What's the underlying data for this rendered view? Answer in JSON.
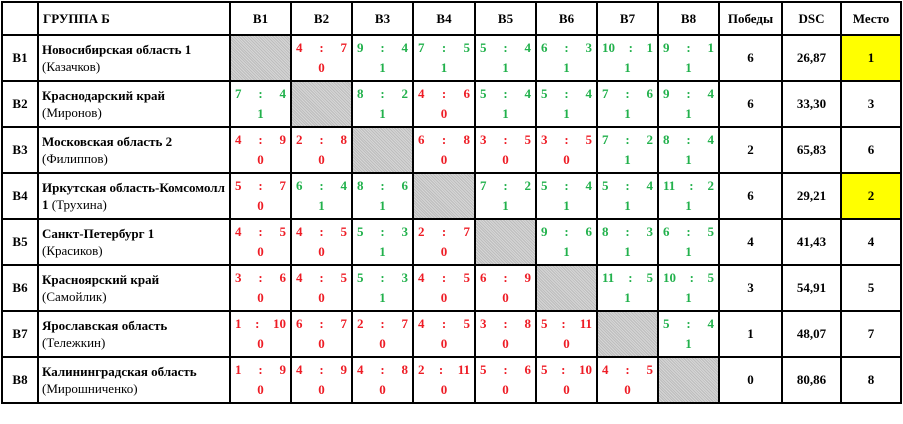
{
  "header": {
    "group": "ГРУППА Б",
    "cols": [
      "В1",
      "В2",
      "В3",
      "В4",
      "В5",
      "В6",
      "В7",
      "В8"
    ],
    "wins": "Победы",
    "dsc": "DSC",
    "place": "Место"
  },
  "colors": {
    "win": "#22b14c",
    "loss": "#ee1c25",
    "highlight": "#ffff00"
  },
  "rows": [
    {
      "id": "В1",
      "team": "Новосибирская область 1",
      "captain": "(Казачков)",
      "cells": [
        null,
        [
          "4",
          "7",
          "0"
        ],
        [
          "9",
          "4",
          "1"
        ],
        [
          "7",
          "5",
          "1"
        ],
        [
          "5",
          "4",
          "1"
        ],
        [
          "6",
          "3",
          "1"
        ],
        [
          "10",
          "1",
          "1"
        ],
        [
          "9",
          "1",
          "1"
        ]
      ],
      "wins": "6",
      "dsc": "26,87",
      "place": "1",
      "highlight": true
    },
    {
      "id": "В2",
      "team": "Краснодарский край",
      "captain": "(Миронов)",
      "cells": [
        [
          "7",
          "4",
          "1"
        ],
        null,
        [
          "8",
          "2",
          "1"
        ],
        [
          "4",
          "6",
          "0"
        ],
        [
          "5",
          "4",
          "1"
        ],
        [
          "5",
          "4",
          "1"
        ],
        [
          "7",
          "6",
          "1"
        ],
        [
          "9",
          "4",
          "1"
        ]
      ],
      "wins": "6",
      "dsc": "33,30",
      "place": "3",
      "highlight": false
    },
    {
      "id": "В3",
      "team": "Московская область 2",
      "captain": "(Филиппов)",
      "cells": [
        [
          "4",
          "9",
          "0"
        ],
        [
          "2",
          "8",
          "0"
        ],
        null,
        [
          "6",
          "8",
          "0"
        ],
        [
          "3",
          "5",
          "0"
        ],
        [
          "3",
          "5",
          "0"
        ],
        [
          "7",
          "2",
          "1"
        ],
        [
          "8",
          "4",
          "1"
        ]
      ],
      "wins": "2",
      "dsc": "65,83",
      "place": "6",
      "highlight": false
    },
    {
      "id": "В4",
      "team": "Иркутская область-Комсомолл 1",
      "captain": "(Трухина)",
      "cells": [
        [
          "5",
          "7",
          "0"
        ],
        [
          "6",
          "4",
          "1"
        ],
        [
          "8",
          "6",
          "1"
        ],
        null,
        [
          "7",
          "2",
          "1"
        ],
        [
          "5",
          "4",
          "1"
        ],
        [
          "5",
          "4",
          "1"
        ],
        [
          "11",
          "2",
          "1"
        ]
      ],
      "wins": "6",
      "dsc": "29,21",
      "place": "2",
      "highlight": true
    },
    {
      "id": "В5",
      "team": "Санкт-Петербург 1",
      "captain": "(Красиков)",
      "cells": [
        [
          "4",
          "5",
          "0"
        ],
        [
          "4",
          "5",
          "0"
        ],
        [
          "5",
          "3",
          "1"
        ],
        [
          "2",
          "7",
          "0"
        ],
        null,
        [
          "9",
          "6",
          "1"
        ],
        [
          "8",
          "3",
          "1"
        ],
        [
          "6",
          "5",
          "1"
        ]
      ],
      "wins": "4",
      "dsc": "41,43",
      "place": "4",
      "highlight": false
    },
    {
      "id": "В6",
      "team": "Красноярский край",
      "captain": "(Самойлик)",
      "cells": [
        [
          "3",
          "6",
          "0"
        ],
        [
          "4",
          "5",
          "0"
        ],
        [
          "5",
          "3",
          "1"
        ],
        [
          "4",
          "5",
          "0"
        ],
        [
          "6",
          "9",
          "0"
        ],
        null,
        [
          "11",
          "5",
          "1"
        ],
        [
          "10",
          "5",
          "1"
        ]
      ],
      "wins": "3",
      "dsc": "54,91",
      "place": "5",
      "highlight": false
    },
    {
      "id": "В7",
      "team": "Ярославская область",
      "captain": "(Тележкин)",
      "cells": [
        [
          "1",
          "10",
          "0"
        ],
        [
          "6",
          "7",
          "0"
        ],
        [
          "2",
          "7",
          "0"
        ],
        [
          "4",
          "5",
          "0"
        ],
        [
          "3",
          "8",
          "0"
        ],
        [
          "5",
          "11",
          "0"
        ],
        null,
        [
          "5",
          "4",
          "1"
        ]
      ],
      "wins": "1",
      "dsc": "48,07",
      "place": "7",
      "highlight": false
    },
    {
      "id": "В8",
      "team": "Калининградская область",
      "captain": "(Мирошниченко)",
      "cells": [
        [
          "1",
          "9",
          "0"
        ],
        [
          "4",
          "9",
          "0"
        ],
        [
          "4",
          "8",
          "0"
        ],
        [
          "2",
          "11",
          "0"
        ],
        [
          "5",
          "6",
          "0"
        ],
        [
          "5",
          "10",
          "0"
        ],
        [
          "4",
          "5",
          "0"
        ],
        null
      ],
      "wins": "0",
      "dsc": "80,86",
      "place": "8",
      "highlight": false
    }
  ]
}
